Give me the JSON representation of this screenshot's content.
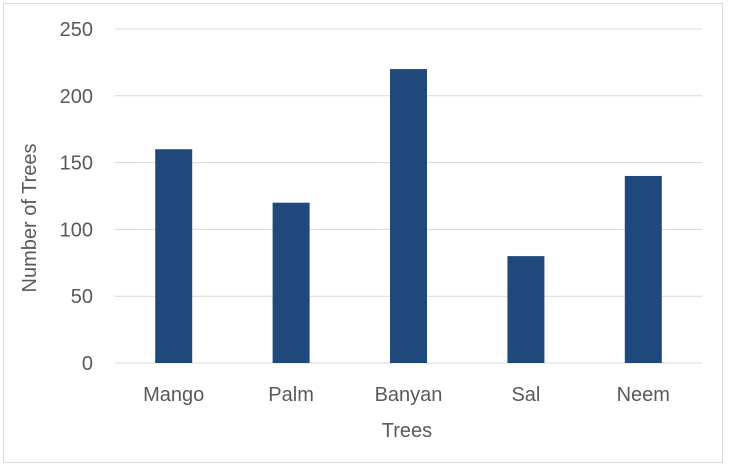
{
  "chart_data": {
    "type": "bar",
    "title": "",
    "xlabel": "Trees",
    "ylabel": "Number of Trees",
    "categories": [
      "Mango",
      "Palm",
      "Banyan",
      "Sal",
      "Neem"
    ],
    "values": [
      160,
      120,
      220,
      80,
      140
    ],
    "ylim": [
      0,
      250
    ],
    "yticks": [
      0,
      50,
      100,
      150,
      200,
      250
    ],
    "grid": true,
    "legend": "none",
    "bar_color": "#1f497d",
    "grid_color": "#d9d9d9"
  }
}
